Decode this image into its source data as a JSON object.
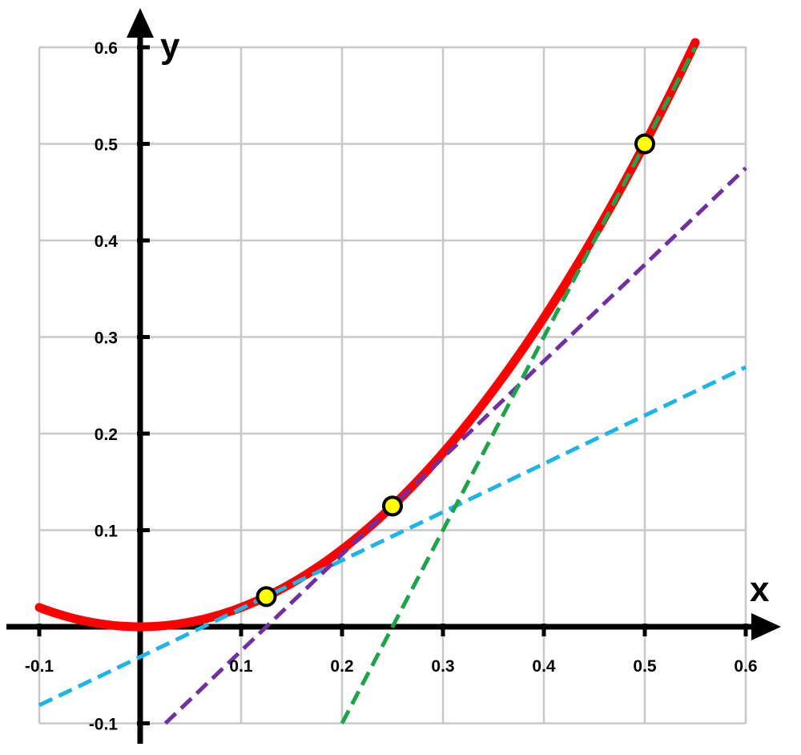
{
  "chart_data": {
    "type": "line",
    "title": "",
    "xlabel": "x",
    "ylabel": "y",
    "xlim": [
      -0.1,
      0.6
    ],
    "ylim": [
      -0.1,
      0.6
    ],
    "grid": true,
    "x_ticks": [
      {
        "value": -0.1,
        "label": "-0.1"
      },
      {
        "value": 0.1,
        "label": "0.1"
      },
      {
        "value": 0.2,
        "label": "0.2"
      },
      {
        "value": 0.3,
        "label": "0.3"
      },
      {
        "value": 0.4,
        "label": "0.4"
      },
      {
        "value": 0.5,
        "label": "0.5"
      },
      {
        "value": 0.6,
        "label": "0.6"
      }
    ],
    "y_ticks": [
      {
        "value": 0.1,
        "label": "0.1"
      },
      {
        "value": 0.2,
        "label": "0.2"
      },
      {
        "value": 0.3,
        "label": "0.3"
      },
      {
        "value": 0.4,
        "label": "0.4"
      },
      {
        "value": 0.5,
        "label": "0.5"
      },
      {
        "value": 0.6,
        "label": "0.6"
      },
      {
        "value": -0.1,
        "label": "-0.1"
      }
    ],
    "series": [
      {
        "style": "solid",
        "color": "#ff0000",
        "function": "y = 2x^2",
        "x_range": [
          -0.1,
          0.55
        ],
        "x": [
          -0.1,
          -0.05,
          0.0,
          0.05,
          0.1,
          0.15,
          0.2,
          0.25,
          0.3,
          0.35,
          0.4,
          0.45,
          0.5,
          0.55
        ],
        "y": [
          0.02,
          0.005,
          0.0,
          0.005,
          0.02,
          0.045,
          0.08,
          0.125,
          0.18,
          0.245,
          0.32,
          0.405,
          0.5,
          0.605
        ]
      },
      {
        "style": "dashed",
        "color": "#1eb4e8",
        "slope": 0.5,
        "intercept": -0.03125,
        "x": [
          -0.1,
          0.6
        ],
        "y": [
          -0.08125,
          0.26875
        ]
      },
      {
        "style": "dashed",
        "color": "#7030a0",
        "slope": 1.0,
        "intercept": -0.125,
        "x": [
          0.025,
          0.6
        ],
        "y": [
          -0.1,
          0.475
        ]
      },
      {
        "style": "dashed",
        "color": "#1fa34a",
        "slope": 2.0,
        "intercept": -0.5,
        "x": [
          0.2,
          0.55
        ],
        "y": [
          -0.1,
          0.6
        ]
      }
    ],
    "points": [
      {
        "x": 0.125,
        "y": 0.03125
      },
      {
        "x": 0.25,
        "y": 0.125
      },
      {
        "x": 0.5,
        "y": 0.5
      }
    ],
    "point_color": "#ffff00"
  }
}
